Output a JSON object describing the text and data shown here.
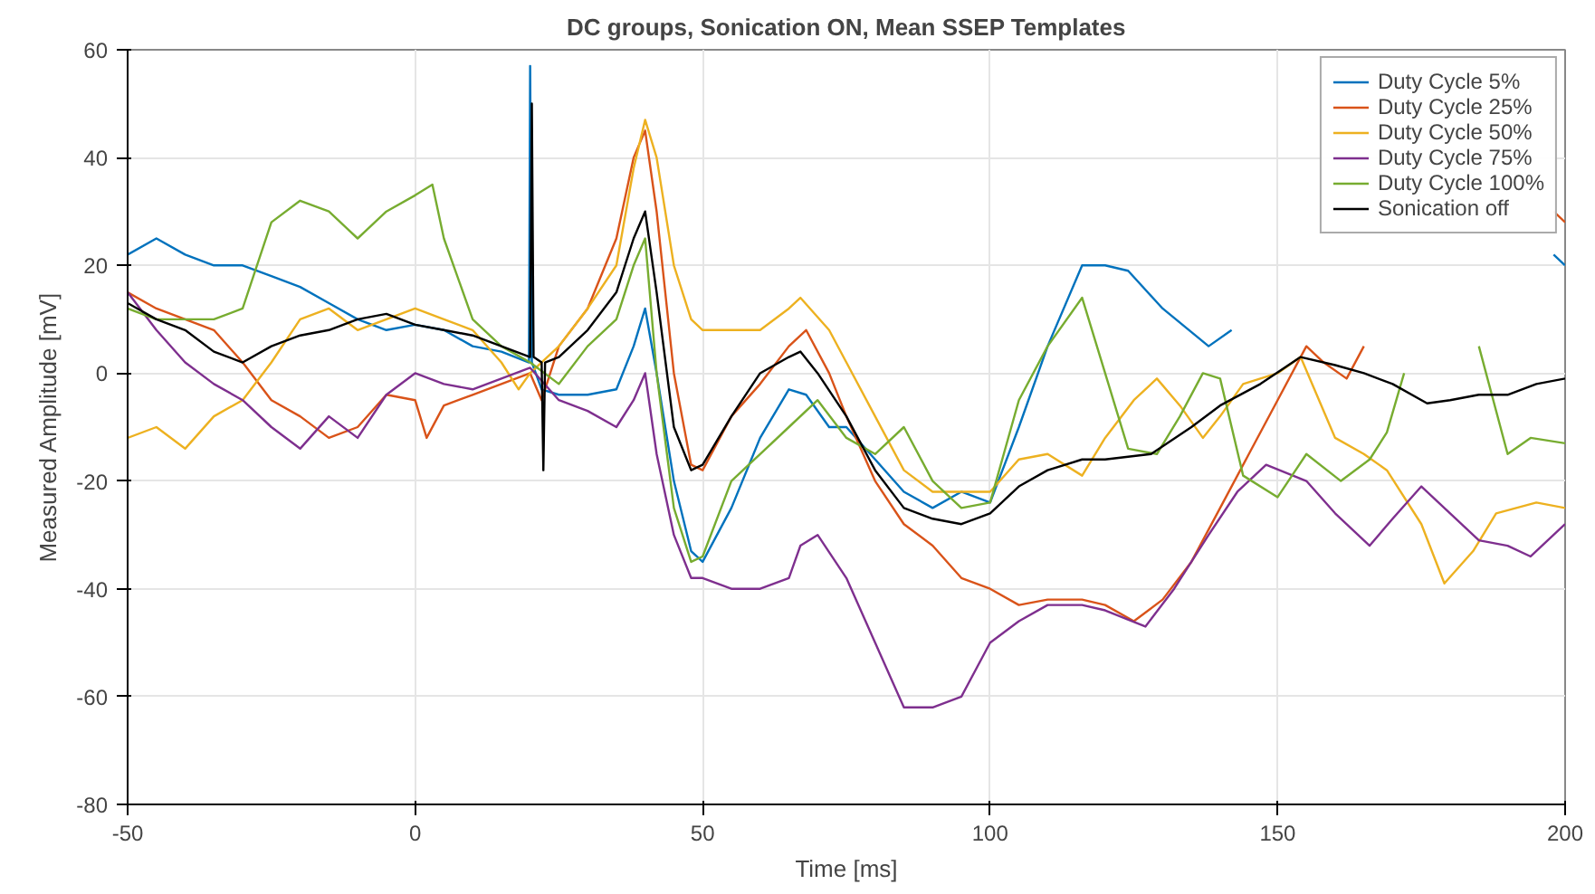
{
  "chart_data": {
    "type": "line",
    "title": "DC groups, Sonication ON, Mean SSEP Templates",
    "xlabel": "Time [ms]",
    "ylabel": "Measured Amplitude [mV]",
    "xlim": [
      -50,
      200
    ],
    "ylim": [
      -80,
      60
    ],
    "xticks": [
      -50,
      0,
      50,
      100,
      150,
      200
    ],
    "yticks": [
      -80,
      -60,
      -40,
      -20,
      0,
      20,
      40,
      60
    ],
    "grid": true,
    "legend": "top right",
    "marker": "none",
    "line_style": "solid",
    "series": [
      {
        "name": "Duty Cycle 5%",
        "color": "#0072bd",
        "x": [
          -50,
          -45,
          -40,
          -35,
          -30,
          -25,
          -20,
          -15,
          -10,
          -5,
          0,
          5,
          10,
          15,
          19.8,
          20,
          20.3,
          22,
          25,
          30,
          35,
          38,
          40,
          42,
          45,
          48,
          50,
          55,
          60,
          65,
          68,
          72,
          75,
          80,
          85,
          90,
          95,
          100,
          105,
          110,
          116,
          120,
          124,
          130,
          138,
          142,
          150,
          160,
          170,
          180,
          190,
          196,
          198,
          200
        ],
        "values": [
          22,
          25,
          22,
          20,
          20,
          18,
          16,
          13,
          10,
          8,
          9,
          8,
          5,
          4,
          2,
          57,
          2,
          -3,
          -4,
          -4,
          -3,
          5,
          12,
          0,
          -20,
          -33,
          -35,
          -25,
          -12,
          -3,
          -4,
          -10,
          -10,
          -16,
          -22,
          -25,
          -22,
          -24,
          -10,
          5,
          20,
          20,
          19,
          12,
          5,
          8,
          null,
          null,
          null,
          null,
          null,
          null,
          22,
          20
        ]
      },
      {
        "name": "Duty Cycle 25%",
        "color": "#d95319",
        "x": [
          -50,
          -45,
          -40,
          -35,
          -30,
          -25,
          -20,
          -15,
          -10,
          -5,
          0,
          2,
          5,
          10,
          15,
          20,
          22,
          25,
          30,
          35,
          38,
          40,
          42,
          45,
          48,
          50,
          55,
          60,
          65,
          68,
          72,
          75,
          80,
          85,
          90,
          95,
          100,
          105,
          110,
          116,
          120,
          125,
          130,
          135,
          140,
          145,
          150,
          155,
          158,
          162,
          165,
          175,
          185,
          196,
          198,
          200
        ],
        "values": [
          15,
          12,
          10,
          8,
          2,
          -5,
          -8,
          -12,
          -10,
          -4,
          -5,
          -12,
          -6,
          -4,
          -2,
          0,
          -5,
          5,
          12,
          25,
          40,
          45,
          30,
          0,
          -17,
          -18,
          -8,
          -2,
          5,
          8,
          0,
          -8,
          -20,
          -28,
          -32,
          -38,
          -40,
          -43,
          -42,
          -42,
          -43,
          -46,
          -42,
          -35,
          -25,
          -15,
          -5,
          5,
          2,
          -1,
          5,
          null,
          null,
          null,
          30,
          28
        ]
      },
      {
        "name": "Duty Cycle 50%",
        "color": "#edb120",
        "x": [
          -50,
          -45,
          -40,
          -35,
          -30,
          -25,
          -20,
          -15,
          -10,
          -5,
          0,
          5,
          10,
          15,
          18,
          20,
          25,
          30,
          35,
          38,
          40,
          42,
          45,
          48,
          50,
          55,
          60,
          65,
          67,
          72,
          75,
          80,
          85,
          90,
          95,
          100,
          105,
          110,
          116,
          120,
          125,
          129,
          133,
          137,
          140,
          144,
          150,
          154,
          160,
          165,
          169,
          175,
          179,
          184,
          188,
          195,
          200
        ],
        "values": [
          -12,
          -10,
          -14,
          -8,
          -5,
          2,
          10,
          12,
          8,
          10,
          12,
          10,
          8,
          2,
          -3,
          0,
          5,
          12,
          20,
          38,
          47,
          40,
          20,
          10,
          8,
          8,
          8,
          12,
          14,
          8,
          2,
          -8,
          -18,
          -22,
          -22,
          -22,
          -16,
          -15,
          -19,
          -12,
          -5,
          -1,
          -6,
          -12,
          -8,
          -2,
          0,
          3,
          -12,
          -15,
          -18,
          -28,
          -39,
          -33,
          -26,
          -24,
          -25
        ]
      },
      {
        "name": "Duty Cycle 75%",
        "color": "#7e2f8e",
        "x": [
          -50,
          -45,
          -40,
          -35,
          -30,
          -25,
          -20,
          -15,
          -10,
          -5,
          0,
          5,
          10,
          15,
          20,
          25,
          30,
          35,
          38,
          40,
          42,
          45,
          48,
          50,
          55,
          60,
          65,
          67,
          70,
          75,
          80,
          85,
          90,
          95,
          100,
          105,
          110,
          116,
          120,
          127,
          132,
          138,
          143,
          148,
          155,
          160,
          166,
          170,
          175,
          180,
          185,
          190,
          194,
          200
        ],
        "values": [
          15,
          8,
          2,
          -2,
          -5,
          -10,
          -14,
          -8,
          -12,
          -4,
          0,
          -2,
          -3,
          -1,
          1,
          -5,
          -7,
          -10,
          -5,
          0,
          -15,
          -30,
          -38,
          -38,
          -40,
          -40,
          -38,
          -32,
          -30,
          -38,
          -50,
          -62,
          -62,
          -60,
          -50,
          -46,
          -43,
          -43,
          -44,
          -47,
          -40,
          -30,
          -22,
          -17,
          -20,
          -26,
          -32,
          -27,
          -21,
          -26,
          -31,
          -32,
          -34,
          -28
        ]
      },
      {
        "name": "Duty Cycle 100%",
        "color": "#77ac30",
        "x": [
          -50,
          -45,
          -40,
          -35,
          -30,
          -25,
          -20,
          -15,
          -10,
          -5,
          0,
          3,
          5,
          10,
          15,
          20,
          25,
          30,
          35,
          38,
          40,
          42,
          45,
          48,
          50,
          55,
          60,
          65,
          70,
          75,
          80,
          85,
          90,
          95,
          100,
          105,
          110,
          116,
          120,
          124,
          129,
          133,
          137,
          140,
          144,
          150,
          155,
          161,
          166,
          169,
          172,
          176,
          182,
          185,
          190,
          194,
          200
        ],
        "values": [
          12,
          10,
          10,
          10,
          12,
          28,
          32,
          30,
          25,
          30,
          33,
          35,
          25,
          10,
          5,
          2,
          -2,
          5,
          10,
          20,
          25,
          0,
          -25,
          -35,
          -34,
          -20,
          -15,
          -10,
          -5,
          -12,
          -15,
          -10,
          -20,
          -25,
          -24,
          -5,
          5,
          14,
          0,
          -14,
          -15,
          -8,
          0,
          -1,
          -19,
          -23,
          -15,
          -20,
          -16,
          -11,
          0,
          null,
          null,
          5,
          -15,
          -12,
          -13
        ]
      },
      {
        "name": "Sonication off",
        "color": "#000000",
        "x": [
          -50,
          -45,
          -40,
          -35,
          -30,
          -25,
          -20,
          -15,
          -10,
          -5,
          0,
          5,
          10,
          15,
          20,
          20.3,
          20.6,
          22,
          22.3,
          22.6,
          25,
          30,
          35,
          38,
          40,
          42,
          45,
          48,
          50,
          55,
          60,
          65,
          67,
          70,
          75,
          80,
          85,
          90,
          95,
          100,
          105,
          110,
          116,
          120,
          128,
          135,
          140,
          147,
          154,
          160,
          165,
          170,
          176,
          180,
          185,
          190,
          195,
          200
        ],
        "values": [
          13,
          10,
          8,
          4,
          2,
          5,
          7,
          8,
          10,
          11,
          9,
          8,
          7,
          5,
          3,
          50,
          3,
          2,
          -18,
          2,
          3,
          8,
          15,
          25,
          30,
          15,
          -10,
          -18,
          -17,
          -8,
          0,
          3,
          4,
          0,
          -8,
          -18,
          -25,
          -27,
          -28,
          -26,
          -21,
          -18,
          -16,
          -16,
          -15,
          -10,
          -6,
          -2,
          3,
          1.5,
          0,
          -2,
          -5.6,
          -5,
          -4,
          -4,
          -2,
          -1
        ]
      }
    ]
  }
}
